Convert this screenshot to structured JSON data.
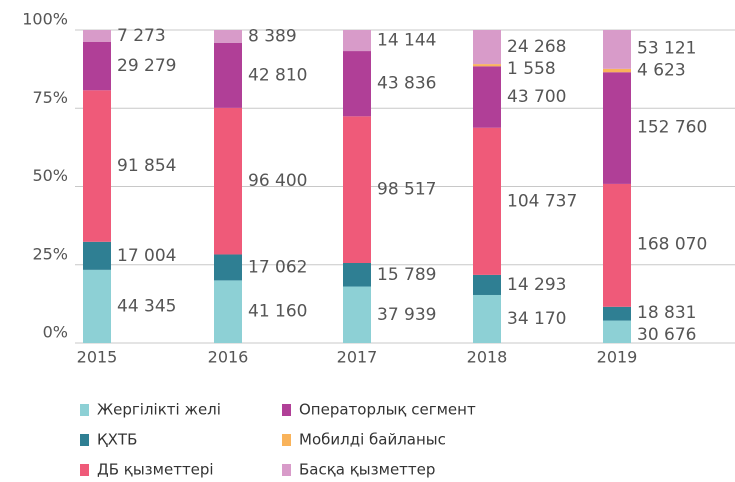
{
  "chart_data": {
    "type": "bar",
    "stacking": "percent",
    "categories": [
      "2015",
      "2016",
      "2017",
      "2018",
      "2019"
    ],
    "ylim": [
      0,
      100
    ],
    "yticks": [
      {
        "value": 0,
        "label": "0%"
      },
      {
        "value": 25,
        "label": "25%"
      },
      {
        "value": 50,
        "label": "50%"
      },
      {
        "value": 75,
        "label": "75%"
      },
      {
        "value": 100,
        "label": "100%"
      }
    ],
    "grid": true,
    "series": [
      {
        "name": "Жергілікті желі",
        "color": "#8dd0d5",
        "values": [
          44345,
          41160,
          37939,
          34170,
          30676
        ],
        "value_labels": [
          "44 345",
          "41 160",
          "37 939",
          "34 170",
          "30 676"
        ]
      },
      {
        "name": "ҚХТБ",
        "color": "#2f7f93",
        "values": [
          17004,
          17062,
          15789,
          14293,
          18831
        ],
        "value_labels": [
          "17 004",
          "17 062",
          "15 789",
          "14 293",
          "18 831"
        ]
      },
      {
        "name": "ДБ қызметтері",
        "color": "#ef5a79",
        "values": [
          91854,
          96400,
          98517,
          104737,
          168070
        ],
        "value_labels": [
          "91 854",
          "96 400",
          "98 517",
          "104 737",
          "168 070"
        ]
      },
      {
        "name": "Операторлық сегмент",
        "color": "#b03f97",
        "values": [
          29279,
          42810,
          43836,
          43700,
          152760
        ],
        "value_labels": [
          "29 279",
          "42 810",
          "43 836",
          "43 700",
          "152 760"
        ]
      },
      {
        "name": "Мобилді байланыс",
        "color": "#f9b35a",
        "values": [
          null,
          null,
          null,
          1558,
          4623
        ],
        "value_labels": [
          null,
          null,
          null,
          "1 558",
          "4 623"
        ]
      },
      {
        "name": "Басқа қызметтер",
        "color": "#d89bc9",
        "values": [
          7273,
          8389,
          14144,
          24268,
          53121
        ],
        "value_labels": [
          "7 273",
          "8 389",
          "14 144",
          "24 268",
          "53 121"
        ]
      }
    ]
  }
}
